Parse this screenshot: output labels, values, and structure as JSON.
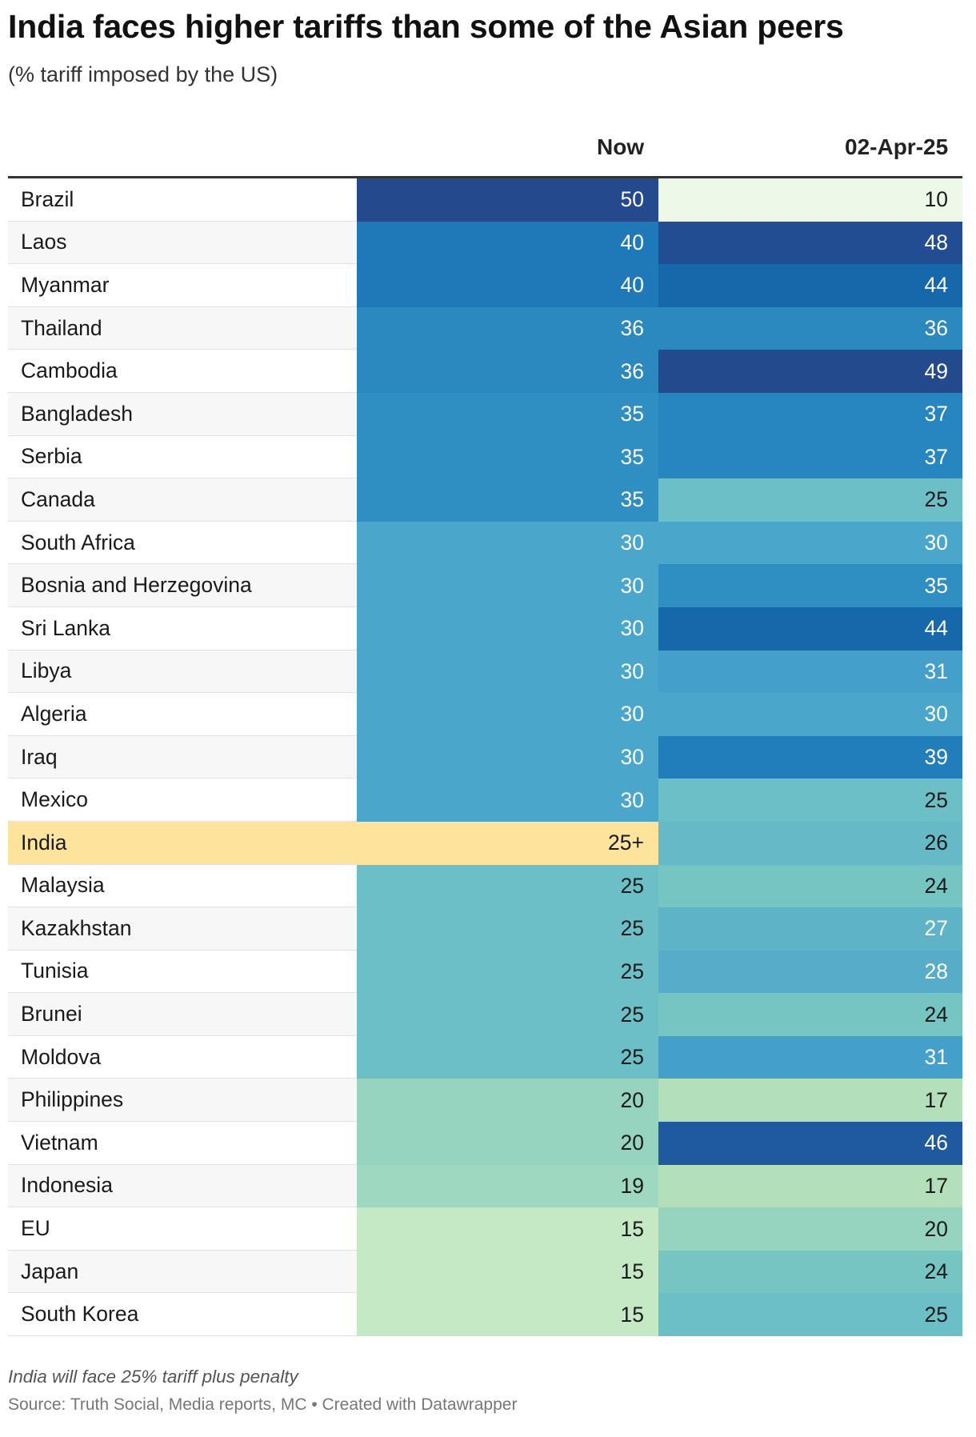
{
  "header": {
    "title": "India faces higher tariffs than some of the Asian peers",
    "subtitle": "(% tariff imposed by the US)"
  },
  "footer": {
    "note": "India will face 25% tariff plus penalty",
    "source": "Source: Truth Social, Media reports, MC • Created with Datawrapper"
  },
  "chart_data": {
    "type": "table",
    "columns": [
      "Now",
      "02-Apr-25"
    ],
    "highlight_row": "India",
    "rows": [
      {
        "country": "Brazil",
        "now": "50",
        "apr": "10",
        "now_val": 50,
        "apr_val": 10
      },
      {
        "country": "Laos",
        "now": "40",
        "apr": "48",
        "now_val": 40,
        "apr_val": 48
      },
      {
        "country": "Myanmar",
        "now": "40",
        "apr": "44",
        "now_val": 40,
        "apr_val": 44
      },
      {
        "country": "Thailand",
        "now": "36",
        "apr": "36",
        "now_val": 36,
        "apr_val": 36
      },
      {
        "country": "Cambodia",
        "now": "36",
        "apr": "49",
        "now_val": 36,
        "apr_val": 49
      },
      {
        "country": "Bangladesh",
        "now": "35",
        "apr": "37",
        "now_val": 35,
        "apr_val": 37
      },
      {
        "country": "Serbia",
        "now": "35",
        "apr": "37",
        "now_val": 35,
        "apr_val": 37
      },
      {
        "country": "Canada",
        "now": "35",
        "apr": "25",
        "now_val": 35,
        "apr_val": 25
      },
      {
        "country": "South Africa",
        "now": "30",
        "apr": "30",
        "now_val": 30,
        "apr_val": 30
      },
      {
        "country": "Bosnia and Herzegovina",
        "now": "30",
        "apr": "35",
        "now_val": 30,
        "apr_val": 35
      },
      {
        "country": "Sri Lanka",
        "now": "30",
        "apr": "44",
        "now_val": 30,
        "apr_val": 44
      },
      {
        "country": "Libya",
        "now": "30",
        "apr": "31",
        "now_val": 30,
        "apr_val": 31
      },
      {
        "country": "Algeria",
        "now": "30",
        "apr": "30",
        "now_val": 30,
        "apr_val": 30
      },
      {
        "country": "Iraq",
        "now": "30",
        "apr": "39",
        "now_val": 30,
        "apr_val": 39
      },
      {
        "country": "Mexico",
        "now": "30",
        "apr": "25",
        "now_val": 30,
        "apr_val": 25
      },
      {
        "country": "India",
        "now": "25+",
        "apr": "26",
        "now_val": 25,
        "apr_val": 26
      },
      {
        "country": "Malaysia",
        "now": "25",
        "apr": "24",
        "now_val": 25,
        "apr_val": 24
      },
      {
        "country": "Kazakhstan",
        "now": "25",
        "apr": "27",
        "now_val": 25,
        "apr_val": 27
      },
      {
        "country": "Tunisia",
        "now": "25",
        "apr": "28",
        "now_val": 25,
        "apr_val": 28
      },
      {
        "country": "Brunei",
        "now": "25",
        "apr": "24",
        "now_val": 25,
        "apr_val": 24
      },
      {
        "country": "Moldova",
        "now": "25",
        "apr": "31",
        "now_val": 25,
        "apr_val": 31
      },
      {
        "country": "Philippines",
        "now": "20",
        "apr": "17",
        "now_val": 20,
        "apr_val": 17
      },
      {
        "country": "Vietnam",
        "now": "20",
        "apr": "46",
        "now_val": 20,
        "apr_val": 46
      },
      {
        "country": "Indonesia",
        "now": "19",
        "apr": "17",
        "now_val": 19,
        "apr_val": 17
      },
      {
        "country": "EU",
        "now": "15",
        "apr": "20",
        "now_val": 15,
        "apr_val": 20
      },
      {
        "country": "Japan",
        "now": "15",
        "apr": "24",
        "now_val": 15,
        "apr_val": 24
      },
      {
        "country": "South Korea",
        "now": "15",
        "apr": "25",
        "now_val": 15,
        "apr_val": 25
      }
    ],
    "color_scale": {
      "10": "#edf8e9",
      "15": "#c5e8c5",
      "17": "#b3e0bb",
      "19": "#9fd8c0",
      "20": "#97d4c0",
      "24": "#77c5c3",
      "25": "#6cbfc6",
      "26": "#66b9c6",
      "27": "#5fb3c7",
      "28": "#57adc9",
      "30": "#4aa6cb",
      "31": "#449fca",
      "35": "#2f8fc3",
      "36": "#2b89c0",
      "37": "#2785bf",
      "39": "#227ebb",
      "40": "#1f79b8",
      "44": "#1767ab",
      "46": "#1f5aa1",
      "48": "#234d92",
      "49": "#244a8e",
      "50": "#24498c"
    }
  }
}
